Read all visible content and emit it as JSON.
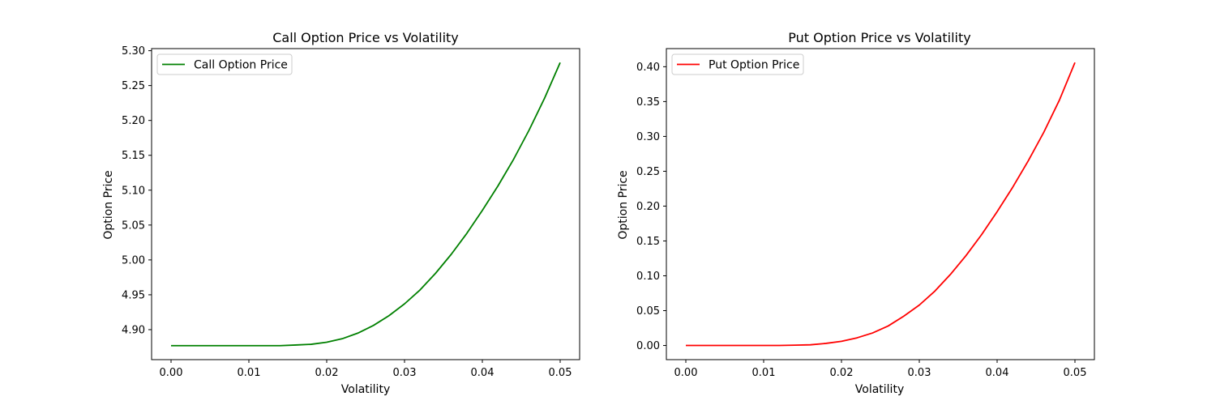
{
  "chart_data": [
    {
      "type": "line",
      "title": "Call Option Price vs Volatility",
      "xlabel": "Volatility",
      "ylabel": "Option Price",
      "xlim": [
        -0.0025,
        0.0525
      ],
      "ylim": [
        4.857,
        5.303
      ],
      "xticks": [
        "0.00",
        "0.01",
        "0.02",
        "0.03",
        "0.04",
        "0.05"
      ],
      "yticks": [
        "4.90",
        "4.95",
        "5.00",
        "5.05",
        "5.10",
        "5.15",
        "5.20",
        "5.25",
        "5.30"
      ],
      "legend": "top-left",
      "grid": false,
      "series": [
        {
          "name": "Call Option Price",
          "color": "#008000",
          "x": [
            0.0,
            0.005,
            0.01,
            0.012,
            0.014,
            0.016,
            0.018,
            0.02,
            0.022,
            0.024,
            0.026,
            0.028,
            0.03,
            0.032,
            0.034,
            0.036,
            0.038,
            0.04,
            0.042,
            0.044,
            0.046,
            0.048,
            0.05
          ],
          "y": [
            4.877,
            4.877,
            4.877,
            4.877,
            4.877,
            4.878,
            4.879,
            4.882,
            4.887,
            4.895,
            4.906,
            4.92,
            4.937,
            4.957,
            4.981,
            5.008,
            5.038,
            5.071,
            5.106,
            5.144,
            5.186,
            5.232,
            5.283
          ]
        }
      ]
    },
    {
      "type": "line",
      "title": "Put Option Price vs Volatility",
      "xlabel": "Volatility",
      "ylabel": "Option Price",
      "xlim": [
        -0.0025,
        0.0525
      ],
      "ylim": [
        -0.0203,
        0.426
      ],
      "xticks": [
        "0.00",
        "0.01",
        "0.02",
        "0.03",
        "0.04",
        "0.05"
      ],
      "yticks": [
        "0.00",
        "0.05",
        "0.10",
        "0.15",
        "0.20",
        "0.25",
        "0.30",
        "0.35",
        "0.40"
      ],
      "legend": "top-left",
      "grid": false,
      "series": [
        {
          "name": "Put Option Price",
          "color": "#ff0000",
          "x": [
            0.0,
            0.005,
            0.01,
            0.012,
            0.014,
            0.016,
            0.018,
            0.02,
            0.022,
            0.024,
            0.026,
            0.028,
            0.03,
            0.032,
            0.034,
            0.036,
            0.038,
            0.04,
            0.042,
            0.044,
            0.046,
            0.048,
            0.05
          ],
          "y": [
            0.0,
            0.0,
            0.0,
            0.0,
            0.0005,
            0.001,
            0.003,
            0.006,
            0.011,
            0.018,
            0.028,
            0.042,
            0.058,
            0.078,
            0.102,
            0.129,
            0.159,
            0.192,
            0.227,
            0.265,
            0.306,
            0.352,
            0.406
          ]
        }
      ]
    }
  ]
}
